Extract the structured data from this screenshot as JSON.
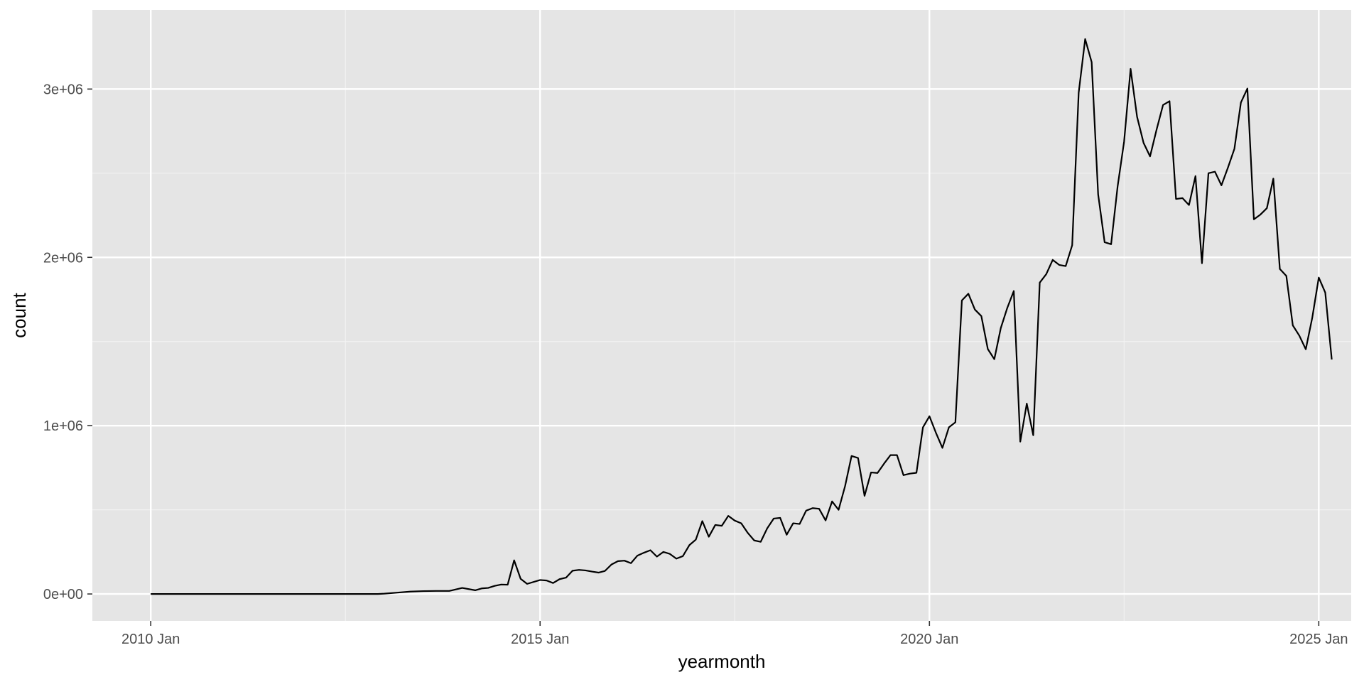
{
  "colors": {
    "panel_background": "#e5e5e5",
    "grid_major": "#ffffff",
    "grid_minor": "#f2f2f2",
    "line": "#000000",
    "tick_text": "#4d4d4d",
    "axis_title": "#000000"
  },
  "chart_data": {
    "type": "line",
    "xlabel": "yearmonth",
    "ylabel": "count",
    "x_ticks": [
      "2010 Jan",
      "2015 Jan",
      "2020 Jan",
      "2025 Jan"
    ],
    "y_ticks": [
      "0e+00",
      "1e+06",
      "2e+06",
      "3e+06"
    ],
    "xlim": [
      "2009-04",
      "2025-06"
    ],
    "ylim": [
      -160000,
      3470000
    ],
    "grid": true,
    "legend": "none",
    "series": [
      {
        "points": [
          [
            "2010-01",
            0
          ],
          [
            "2010-06",
            0
          ],
          [
            "2011-01",
            0
          ],
          [
            "2011-06",
            0
          ],
          [
            "2012-01",
            0
          ],
          [
            "2012-06",
            0
          ],
          [
            "2012-12",
            0
          ],
          [
            "2013-01",
            2000
          ],
          [
            "2013-03",
            8000
          ],
          [
            "2013-05",
            14000
          ],
          [
            "2013-07",
            17000
          ],
          [
            "2013-09",
            18000
          ],
          [
            "2013-11",
            18000
          ],
          [
            "2014-01",
            36000
          ],
          [
            "2014-03",
            22000
          ],
          [
            "2014-04",
            33000
          ],
          [
            "2014-05",
            36000
          ],
          [
            "2014-06",
            48000
          ],
          [
            "2014-07",
            56000
          ],
          [
            "2014-08",
            55000
          ],
          [
            "2014-09",
            200000
          ],
          [
            "2014-10",
            90000
          ],
          [
            "2014-11",
            60000
          ],
          [
            "2015-01",
            83000
          ],
          [
            "2015-02",
            80000
          ],
          [
            "2015-03",
            65000
          ],
          [
            "2015-04",
            88000
          ],
          [
            "2015-05",
            97000
          ],
          [
            "2015-06",
            138000
          ],
          [
            "2015-07",
            143000
          ],
          [
            "2015-08",
            140000
          ],
          [
            "2015-09",
            133000
          ],
          [
            "2015-10",
            127000
          ],
          [
            "2015-11",
            137000
          ],
          [
            "2015-12",
            175000
          ],
          [
            "2016-01",
            195000
          ],
          [
            "2016-02",
            198000
          ],
          [
            "2016-03",
            183000
          ],
          [
            "2016-04",
            228000
          ],
          [
            "2016-05",
            245000
          ],
          [
            "2016-06",
            260000
          ],
          [
            "2016-07",
            222000
          ],
          [
            "2016-08",
            250000
          ],
          [
            "2016-09",
            238000
          ],
          [
            "2016-10",
            210000
          ],
          [
            "2016-11",
            225000
          ],
          [
            "2016-12",
            290000
          ],
          [
            "2017-01",
            323000
          ],
          [
            "2017-02",
            433000
          ],
          [
            "2017-03",
            340000
          ],
          [
            "2017-04",
            410000
          ],
          [
            "2017-05",
            405000
          ],
          [
            "2017-06",
            464000
          ],
          [
            "2017-07",
            436000
          ],
          [
            "2017-08",
            420000
          ],
          [
            "2017-09",
            363000
          ],
          [
            "2017-10",
            318000
          ],
          [
            "2017-11",
            310000
          ],
          [
            "2017-12",
            390000
          ],
          [
            "2018-01",
            448000
          ],
          [
            "2018-02",
            452000
          ],
          [
            "2018-03",
            352000
          ],
          [
            "2018-04",
            420000
          ],
          [
            "2018-05",
            416000
          ],
          [
            "2018-06",
            495000
          ],
          [
            "2018-07",
            510000
          ],
          [
            "2018-08",
            506000
          ],
          [
            "2018-09",
            437000
          ],
          [
            "2018-10",
            550000
          ],
          [
            "2018-11",
            500000
          ],
          [
            "2018-12",
            641000
          ],
          [
            "2019-01",
            820000
          ],
          [
            "2019-02",
            808000
          ],
          [
            "2019-03",
            583000
          ],
          [
            "2019-04",
            722000
          ],
          [
            "2019-05",
            719000
          ],
          [
            "2019-06",
            774000
          ],
          [
            "2019-07",
            825000
          ],
          [
            "2019-08",
            825000
          ],
          [
            "2019-09",
            706000
          ],
          [
            "2019-10",
            715000
          ],
          [
            "2019-11",
            720000
          ],
          [
            "2019-12",
            990000
          ],
          [
            "2020-01",
            1056000
          ],
          [
            "2020-02",
            958000
          ],
          [
            "2020-03",
            868000
          ],
          [
            "2020-04",
            990000
          ],
          [
            "2020-05",
            1020000
          ],
          [
            "2020-06",
            1744000
          ],
          [
            "2020-07",
            1784000
          ],
          [
            "2020-08",
            1690000
          ],
          [
            "2020-09",
            1651000
          ],
          [
            "2020-10",
            1455000
          ],
          [
            "2020-11",
            1395000
          ],
          [
            "2020-12",
            1580000
          ],
          [
            "2021-01",
            1700000
          ],
          [
            "2021-02",
            1800000
          ],
          [
            "2021-03",
            905000
          ],
          [
            "2021-04",
            1131000
          ],
          [
            "2021-05",
            943000
          ],
          [
            "2021-06",
            1850000
          ],
          [
            "2021-07",
            1900000
          ],
          [
            "2021-08",
            1985000
          ],
          [
            "2021-09",
            1955000
          ],
          [
            "2021-10",
            1948000
          ],
          [
            "2021-11",
            2072000
          ],
          [
            "2021-12",
            2978000
          ],
          [
            "2022-01",
            3297000
          ],
          [
            "2022-02",
            3160000
          ],
          [
            "2022-03",
            2374000
          ],
          [
            "2022-04",
            2090000
          ],
          [
            "2022-05",
            2078000
          ],
          [
            "2022-06",
            2421000
          ],
          [
            "2022-07",
            2688000
          ],
          [
            "2022-08",
            3120000
          ],
          [
            "2022-09",
            2835000
          ],
          [
            "2022-10",
            2680000
          ],
          [
            "2022-11",
            2600000
          ],
          [
            "2022-12",
            2758000
          ],
          [
            "2023-01",
            2905000
          ],
          [
            "2023-02",
            2928000
          ],
          [
            "2023-03",
            2347000
          ],
          [
            "2023-04",
            2352000
          ],
          [
            "2023-05",
            2311000
          ],
          [
            "2023-06",
            2483000
          ],
          [
            "2023-07",
            1965000
          ],
          [
            "2023-08",
            2500000
          ],
          [
            "2023-09",
            2509000
          ],
          [
            "2023-10",
            2428000
          ],
          [
            "2023-11",
            2533000
          ],
          [
            "2023-12",
            2645000
          ],
          [
            "2024-01",
            2920000
          ],
          [
            "2024-02",
            3003000
          ],
          [
            "2024-03",
            2226000
          ],
          [
            "2024-04",
            2254000
          ],
          [
            "2024-05",
            2292000
          ],
          [
            "2024-06",
            2468000
          ],
          [
            "2024-07",
            1931000
          ],
          [
            "2024-08",
            1890000
          ],
          [
            "2024-09",
            1596000
          ],
          [
            "2024-10",
            1535000
          ],
          [
            "2024-11",
            1454000
          ],
          [
            "2024-12",
            1642000
          ],
          [
            "2025-01",
            1880000
          ],
          [
            "2025-02",
            1791000
          ],
          [
            "2025-03",
            1393000
          ]
        ]
      }
    ]
  }
}
